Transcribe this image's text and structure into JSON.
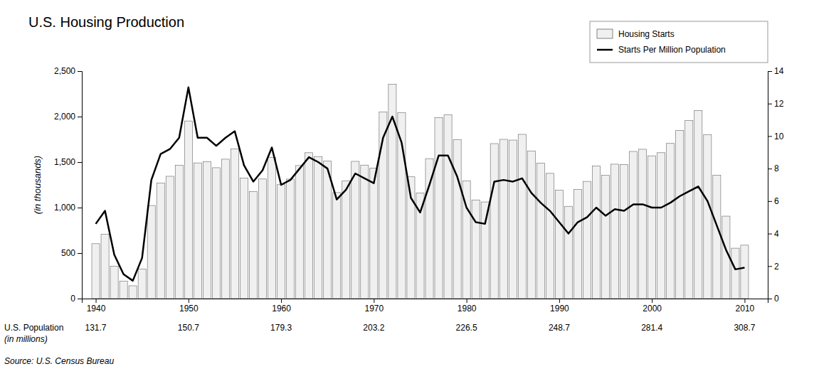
{
  "chart_data": {
    "type": "bar",
    "title": "U.S. Housing Production",
    "ylabel": "(in thousands)",
    "source": "Source: U.S. Census Bureau",
    "x": [
      1940,
      1941,
      1942,
      1943,
      1944,
      1945,
      1946,
      1947,
      1948,
      1949,
      1950,
      1951,
      1952,
      1953,
      1954,
      1955,
      1956,
      1957,
      1958,
      1959,
      1960,
      1961,
      1962,
      1963,
      1964,
      1965,
      1966,
      1967,
      1968,
      1969,
      1970,
      1971,
      1972,
      1973,
      1974,
      1975,
      1976,
      1977,
      1978,
      1979,
      1980,
      1981,
      1982,
      1983,
      1984,
      1985,
      1986,
      1987,
      1988,
      1989,
      1990,
      1991,
      1992,
      1993,
      1994,
      1995,
      1996,
      1997,
      1998,
      1999,
      2000,
      2001,
      2002,
      2003,
      2004,
      2005,
      2006,
      2007,
      2008,
      2009,
      2010
    ],
    "xlim": [
      1938.5,
      2012.5
    ],
    "xticks": [
      1940,
      1950,
      1960,
      1970,
      1980,
      1990,
      2000,
      2010
    ],
    "ylim": [
      0,
      2500
    ],
    "yticks": [
      0,
      500,
      {
        "value": 1000,
        "label": "1,000"
      },
      {
        "value": 1500,
        "label": "1,500"
      },
      {
        "value": 2000,
        "label": "2,000"
      },
      {
        "value": 2500,
        "label": "2,500"
      }
    ],
    "y2lim": [
      0,
      14
    ],
    "y2ticks": [
      0,
      2,
      4,
      6,
      8,
      10,
      12,
      14
    ],
    "grid": false,
    "legend": "upper right",
    "series": [
      {
        "name": "Housing Starts",
        "type": "bar",
        "color": "#f0f0f0",
        "values": [
          603,
          706,
          356,
          191,
          141,
          325,
          1023,
          1268,
          1344,
          1466,
          1952,
          1491,
          1504,
          1438,
          1532,
          1646,
          1325,
          1175,
          1314,
          1553,
          1252,
          1313,
          1462,
          1603,
          1561,
          1510,
          1165,
          1292,
          1508,
          1467,
          1434,
          2052,
          2357,
          2045,
          1338,
          1160,
          1538,
          1987,
          2020,
          1745,
          1292,
          1084,
          1062,
          1703,
          1750,
          1742,
          1805,
          1620,
          1488,
          1376,
          1193,
          1014,
          1200,
          1288,
          1457,
          1354,
          1477,
          1474,
          1617,
          1641,
          1569,
          1603,
          1705,
          1848,
          1956,
          2068,
          1801,
          1355,
          906,
          554,
          587
        ]
      },
      {
        "name": "Starts Per Million Population",
        "type": "line",
        "color": "#000000",
        "axis": "y2",
        "values": [
          4.6,
          5.4,
          2.7,
          1.5,
          1.1,
          2.5,
          7.3,
          8.9,
          9.2,
          9.9,
          13.0,
          9.9,
          9.9,
          9.4,
          9.9,
          10.3,
          8.2,
          7.2,
          7.9,
          9.3,
          7.0,
          7.3,
          8.0,
          8.7,
          8.4,
          8.0,
          6.1,
          6.7,
          7.7,
          7.4,
          7.1,
          9.9,
          11.2,
          9.6,
          6.2,
          5.3,
          7.0,
          8.8,
          8.8,
          7.5,
          5.6,
          4.7,
          4.6,
          7.2,
          7.3,
          7.2,
          7.4,
          6.5,
          5.9,
          5.4,
          4.7,
          4.0,
          4.7,
          5.0,
          5.6,
          5.1,
          5.5,
          5.4,
          5.8,
          5.8,
          5.6,
          5.6,
          5.9,
          6.3,
          6.6,
          6.9,
          6.0,
          4.5,
          3.0,
          1.8,
          1.9
        ]
      }
    ],
    "population": {
      "name": "U.S. Population",
      "unit": "(in millions)",
      "x": [
        1940,
        1950,
        1960,
        1970,
        1980,
        1990,
        2000,
        2010
      ],
      "values": [
        131.7,
        150.7,
        179.3,
        203.2,
        226.5,
        248.7,
        281.4,
        308.7
      ]
    }
  }
}
